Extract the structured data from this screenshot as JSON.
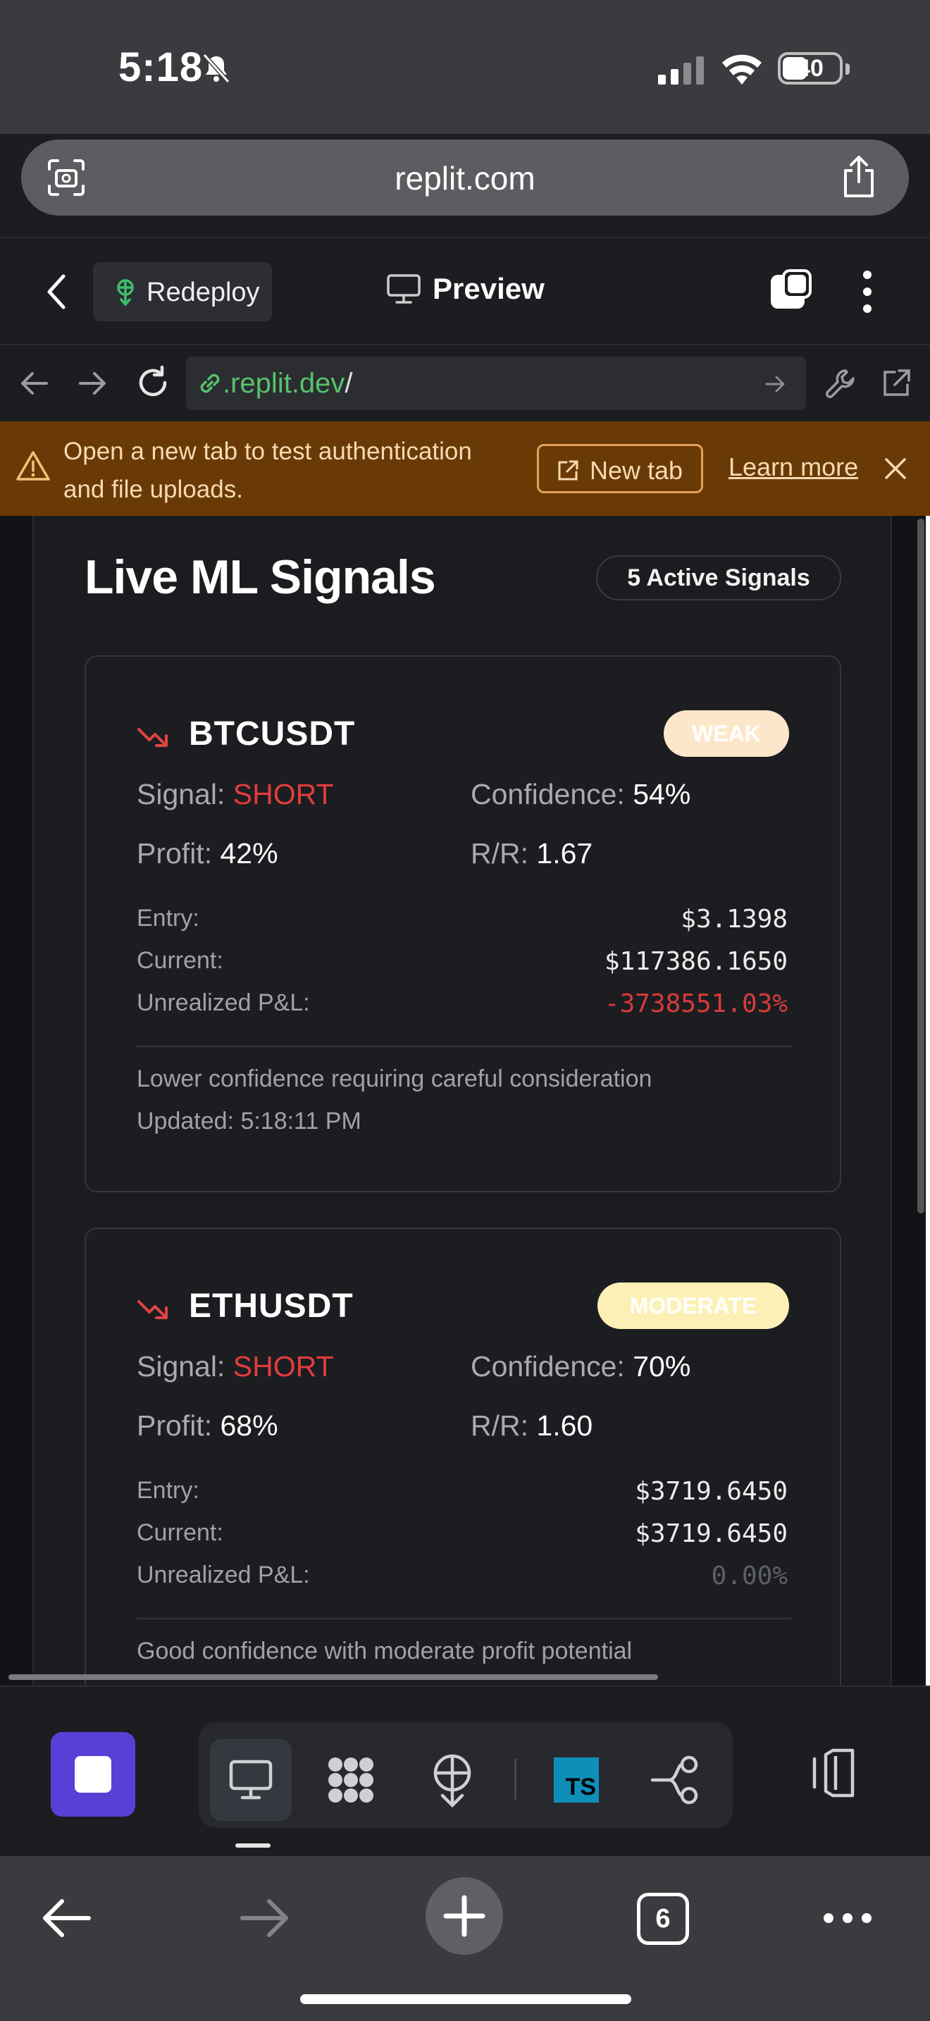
{
  "status_bar": {
    "time": "5:18",
    "battery": "40"
  },
  "browser": {
    "domain": "replit.com"
  },
  "replit_header": {
    "redeploy_label": "Redeploy",
    "preview_label": "Preview"
  },
  "preview_toolbar": {
    "address_host": ".replit.dev",
    "address_path": "/"
  },
  "banner": {
    "text": "Open a new tab to test authentication and file uploads.",
    "new_tab_label": "New tab",
    "learn_more_label": "Learn more"
  },
  "signals_panel": {
    "title": "Live ML Signals",
    "active_badge": "5 Active Signals",
    "labels": {
      "signal": "Signal: ",
      "confidence": "Confidence: ",
      "profit": "Profit: ",
      "rr": "R/R: ",
      "entry": "Entry:",
      "current": "Current:",
      "pnl": "Unrealized P&L:"
    },
    "cards": [
      {
        "symbol": "BTCUSDT",
        "strength": "WEAK",
        "signal": "SHORT",
        "confidence": "54%",
        "profit": "42%",
        "rr": "1.67",
        "entry": "$3.1398",
        "current": "$117386.1650",
        "pnl": "-3738551.03%",
        "description": "Lower confidence requiring careful consideration",
        "updated": "Updated: 5:18:11 PM"
      },
      {
        "symbol": "ETHUSDT",
        "strength": "MODERATE",
        "signal": "SHORT",
        "confidence": "70%",
        "profit": "68%",
        "rr": "1.60",
        "entry": "$3719.6450",
        "current": "$3719.6450",
        "pnl": "0.00%",
        "description": "Good confidence with moderate profit potential"
      }
    ]
  },
  "safari_bar": {
    "tab_count": "6"
  },
  "colors": {
    "short": "#e23c3c",
    "accent_purple": "#5a3fd6",
    "banner_bg": "#6a3a06",
    "link_green": "#58c26b"
  },
  "icons": [
    "bell-slash-icon",
    "cellular-icon",
    "wifi-icon",
    "battery-icon",
    "scan-icon",
    "share-icon",
    "chevron-left-icon",
    "deploy-icon",
    "monitor-icon",
    "pane-icon",
    "kebab-icon",
    "arrow-left-icon",
    "arrow-right-icon",
    "reload-icon",
    "link-icon",
    "wrench-icon",
    "external-link-icon",
    "warning-icon",
    "close-icon",
    "trend-down-icon",
    "stop-icon",
    "packages-icon",
    "ts-icon",
    "git-icon",
    "layout-icon",
    "plus-icon",
    "more-icon"
  ]
}
